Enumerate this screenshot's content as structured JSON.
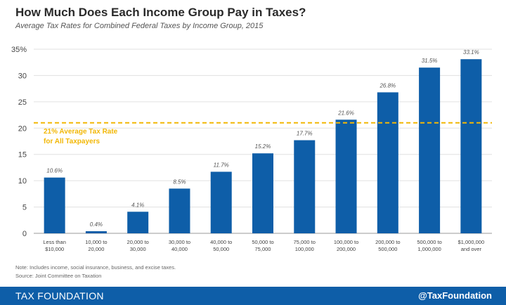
{
  "title": "How Much Does Each Income Group Pay in Taxes?",
  "subtitle": "Average Tax Rates for Combined Federal Taxes by Income Group, 2015",
  "chart_data": {
    "type": "bar",
    "categories": [
      [
        "Less than",
        "$10,000"
      ],
      [
        "10,000 to",
        "20,000"
      ],
      [
        "20,000 to",
        "30,000"
      ],
      [
        "30,000 to",
        "40,000"
      ],
      [
        "40,000 to",
        "50,000"
      ],
      [
        "50,000 to",
        "75,000"
      ],
      [
        "75,000 to",
        "100,000"
      ],
      [
        "100,000 to",
        "200,000"
      ],
      [
        "200,000 to",
        "500,000"
      ],
      [
        "500,000 to",
        "1,000,000"
      ],
      [
        "$1,000,000",
        "and over"
      ]
    ],
    "values": [
      10.6,
      0.4,
      4.1,
      8.5,
      11.7,
      15.2,
      17.7,
      21.6,
      26.8,
      31.5,
      33.1
    ],
    "value_labels": [
      "10.6%",
      "0.4%",
      "4.1%",
      "8.5%",
      "11.7%",
      "15.2%",
      "17.7%",
      "21.6%",
      "26.8%",
      "31.5%",
      "33.1%"
    ],
    "ylim": [
      0,
      35
    ],
    "yticks": [
      0,
      5,
      10,
      15,
      20,
      25,
      30,
      35
    ],
    "ytick_labels": [
      "0",
      "5",
      "10",
      "15",
      "20",
      "25",
      "30",
      "35%"
    ],
    "grid": true,
    "reference_line": {
      "value": 21,
      "label_lines": [
        "21% Average Tax Rate",
        "for All Taxpayers"
      ],
      "color": "#f2b705"
    },
    "bar_color": "#0e5ea8"
  },
  "notes": {
    "note": "Note: Includes income, social insurance, business, and excise taxes.",
    "source": "Source: Joint Committee on Taxation"
  },
  "footer": {
    "brand": "TAX FOUNDATION",
    "handle": "@TaxFoundation"
  }
}
